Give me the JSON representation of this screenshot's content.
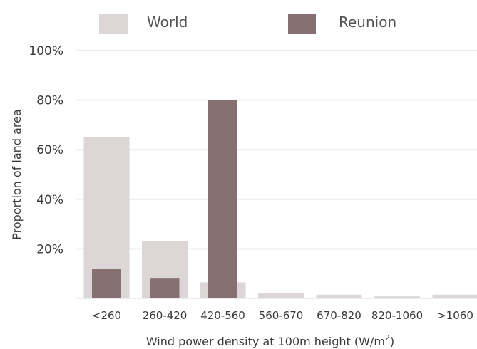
{
  "chart_data": {
    "type": "bar",
    "categories": [
      "<260",
      "260-420",
      "420-560",
      "560-670",
      "670-820",
      "820-1060",
      ">1060"
    ],
    "series": [
      {
        "name": "World",
        "values": [
          65,
          23,
          6.5,
          2,
          1.5,
          0.8,
          1.5
        ],
        "color": "#dcd6d6"
      },
      {
        "name": "Reunion",
        "values": [
          12,
          8,
          80,
          0,
          0,
          0,
          0
        ],
        "color": "#877072"
      }
    ],
    "xlabel": "Wind power density at 100m height (W/m",
    "xlabel_sup": "2",
    "xlabel_close": ")",
    "ylabel": "Proportion of land area",
    "ylim": [
      0,
      100
    ],
    "yticks": [
      20,
      40,
      60,
      80,
      100
    ],
    "ytick_labels": [
      "20%",
      "40%",
      "60%",
      "80%",
      "100%"
    ],
    "grid": true,
    "legend_position": "top"
  }
}
